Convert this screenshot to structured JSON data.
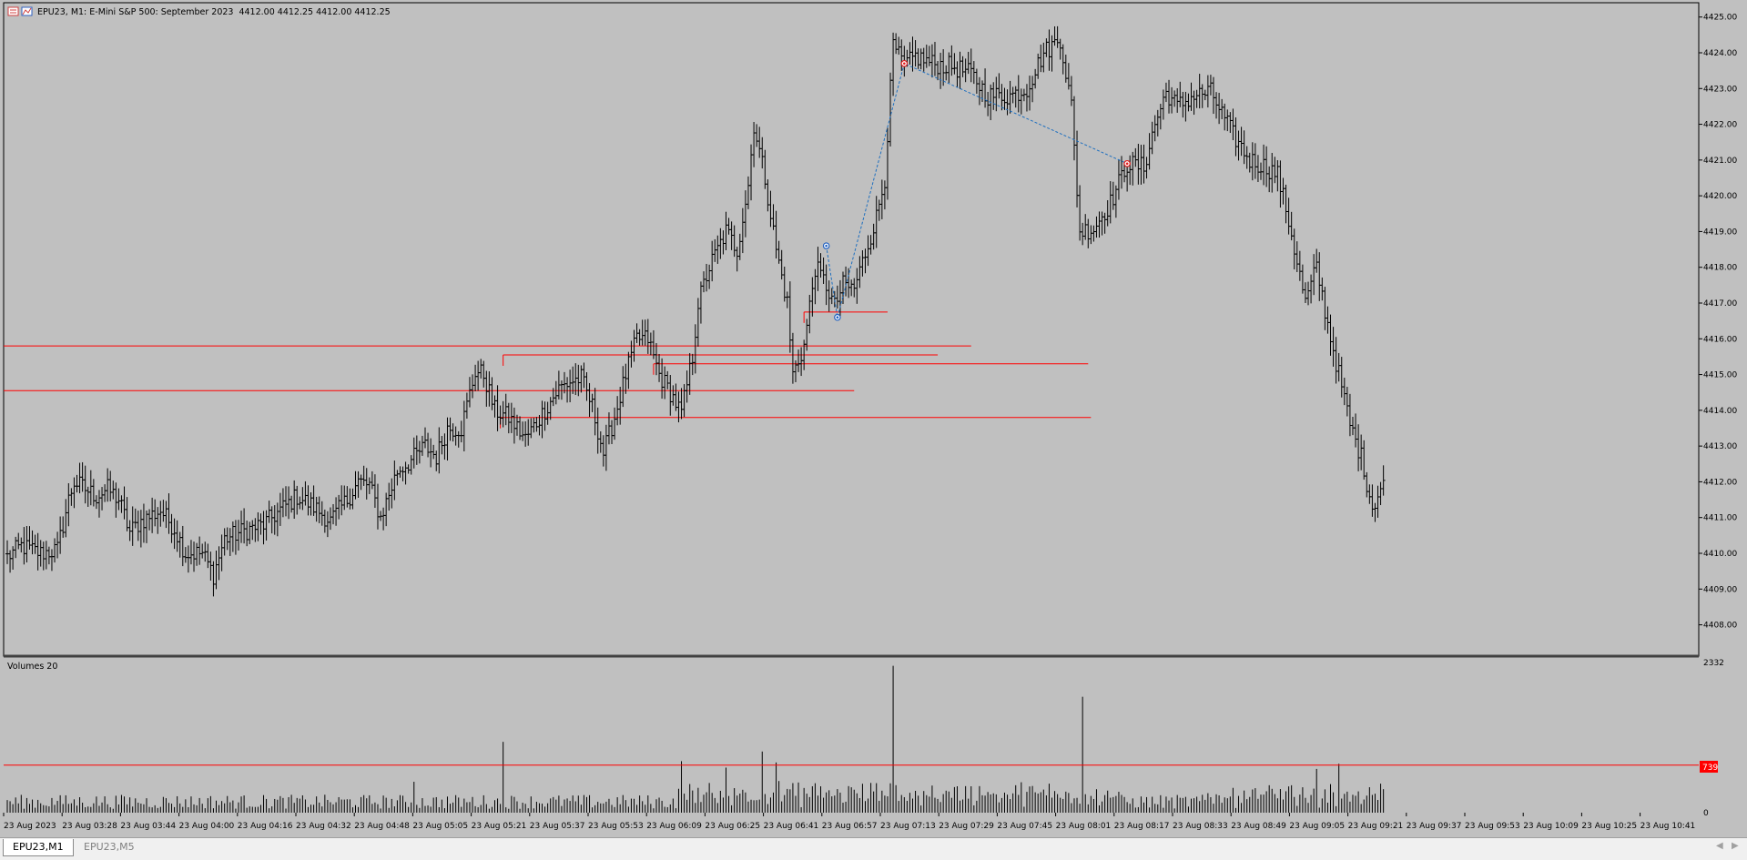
{
  "window": {
    "title_symbol": "EPU23, M1:  E-Mini S&P 500: September 2023",
    "title_ohlc": "4412.00 4412.25 4412.00 4412.25"
  },
  "volume_panel": {
    "title": "Volumes 20",
    "max_label": "2332",
    "zero_label": "0",
    "level_label": "739"
  },
  "tabs": [
    {
      "label": "EPU23,M1",
      "active": true
    },
    {
      "label": "EPU23,M5",
      "active": false
    }
  ],
  "colors": {
    "background": "#c0c0c0",
    "bars": "#000000",
    "level_lines": "#ff0000",
    "trend_line": "#1e6fbf",
    "marker_red": "#e02020",
    "marker_blue": "#2060c0"
  },
  "chart_data": {
    "type": "ohlc",
    "timeframe": "M1",
    "y_ticks": [
      "4425.00",
      "4424.00",
      "4423.00",
      "4422.00",
      "4421.00",
      "4420.00",
      "4419.00",
      "4418.00",
      "4417.00",
      "4416.00",
      "4415.00",
      "4414.00",
      "4413.00",
      "4412.00",
      "4411.00",
      "4410.00",
      "4409.00",
      "4408.00"
    ],
    "ylim": [
      4407.2,
      4425.4
    ],
    "x_ticks": [
      "23 Aug 2023",
      "23 Aug 03:28",
      "23 Aug 03:44",
      "23 Aug 04:00",
      "23 Aug 04:16",
      "23 Aug 04:32",
      "23 Aug 04:48",
      "23 Aug 05:05",
      "23 Aug 05:21",
      "23 Aug 05:37",
      "23 Aug 05:53",
      "23 Aug 06:09",
      "23 Aug 06:25",
      "23 Aug 06:41",
      "23 Aug 06:57",
      "23 Aug 07:13",
      "23 Aug 07:29",
      "23 Aug 07:45",
      "23 Aug 08:01",
      "23 Aug 08:17",
      "23 Aug 08:33",
      "23 Aug 08:49",
      "23 Aug 09:05",
      "23 Aug 09:21",
      "23 Aug 09:37",
      "23 Aug 09:53",
      "23 Aug 10:09",
      "23 Aug 10:25",
      "23 Aug 10:41"
    ],
    "close_anchors": [
      [
        0,
        4409.9
      ],
      [
        5,
        4410.2
      ],
      [
        12,
        4410.0
      ],
      [
        18,
        4410.1
      ],
      [
        22,
        4411.5
      ],
      [
        24,
        4412.0
      ],
      [
        28,
        4411.8
      ],
      [
        32,
        4411.6
      ],
      [
        36,
        4411.8
      ],
      [
        40,
        4411.5
      ],
      [
        44,
        4410.6
      ],
      [
        48,
        4410.9
      ],
      [
        55,
        4411.2
      ],
      [
        60,
        4410.7
      ],
      [
        64,
        4410.0
      ],
      [
        70,
        4410.0
      ],
      [
        74,
        4409.4
      ],
      [
        78,
        4410.4
      ],
      [
        84,
        4410.6
      ],
      [
        92,
        4410.8
      ],
      [
        98,
        4411.2
      ],
      [
        104,
        4411.6
      ],
      [
        110,
        4411.3
      ],
      [
        116,
        4410.9
      ],
      [
        122,
        4411.5
      ],
      [
        126,
        4412.0
      ],
      [
        130,
        4411.9
      ],
      [
        134,
        4411.0
      ],
      [
        140,
        4412.3
      ],
      [
        145,
        4412.6
      ],
      [
        150,
        4413.0
      ],
      [
        154,
        4412.7
      ],
      [
        158,
        4413.5
      ],
      [
        163,
        4413.5
      ],
      [
        168,
        4415.1
      ],
      [
        171,
        4415.0
      ],
      [
        175,
        4414.0
      ],
      [
        180,
        4413.8
      ],
      [
        186,
        4413.2
      ],
      [
        192,
        4413.9
      ],
      [
        198,
        4414.6
      ],
      [
        202,
        4414.8
      ],
      [
        206,
        4414.9
      ],
      [
        210,
        4414.1
      ],
      [
        214,
        4412.8
      ],
      [
        218,
        4413.8
      ],
      [
        222,
        4415.0
      ],
      [
        226,
        4416.0
      ],
      [
        230,
        4416.0
      ],
      [
        234,
        4415.0
      ],
      [
        238,
        4414.5
      ],
      [
        242,
        4413.9
      ],
      [
        246,
        4415.5
      ],
      [
        248,
        4417.0
      ],
      [
        252,
        4418.0
      ],
      [
        258,
        4419.0
      ],
      [
        262,
        4418.5
      ],
      [
        266,
        4420.3
      ],
      [
        268,
        4422.0
      ],
      [
        272,
        4420.5
      ],
      [
        276,
        4418.5
      ],
      [
        280,
        4417.0
      ],
      [
        282,
        4415.0
      ],
      [
        286,
        4415.8
      ],
      [
        290,
        4418.0
      ],
      [
        294,
        4417.5
      ],
      [
        297,
        4416.9
      ],
      [
        300,
        4417.5
      ],
      [
        304,
        4417.4
      ],
      [
        308,
        4418.4
      ],
      [
        312,
        4419.4
      ],
      [
        315,
        4420.5
      ],
      [
        318,
        4424.2
      ],
      [
        322,
        4423.6
      ],
      [
        326,
        4423.9
      ],
      [
        332,
        4423.7
      ],
      [
        340,
        4423.6
      ],
      [
        346,
        4423.4
      ],
      [
        352,
        4422.8
      ],
      [
        360,
        4422.8
      ],
      [
        366,
        4423.0
      ],
      [
        372,
        4424.0
      ],
      [
        378,
        4424.4
      ],
      [
        382,
        4422.5
      ],
      [
        385,
        4419.0
      ],
      [
        390,
        4419.1
      ],
      [
        396,
        4419.8
      ],
      [
        402,
        4420.9
      ],
      [
        408,
        4420.8
      ],
      [
        412,
        4422.0
      ],
      [
        416,
        4422.9
      ],
      [
        420,
        4422.5
      ],
      [
        426,
        4422.8
      ],
      [
        432,
        4422.9
      ],
      [
        436,
        4422.3
      ],
      [
        440,
        4421.7
      ],
      [
        446,
        4421.0
      ],
      [
        452,
        4420.8
      ],
      [
        456,
        4420.6
      ],
      [
        460,
        4419.3
      ],
      [
        466,
        4417.0
      ],
      [
        470,
        4418.0
      ],
      [
        474,
        4416.4
      ],
      [
        478,
        4415.0
      ],
      [
        482,
        4413.6
      ],
      [
        486,
        4412.7
      ],
      [
        490,
        4411.3
      ],
      [
        494,
        4412.0
      ]
    ],
    "volume_ylim": [
      0,
      2332
    ],
    "volume_level": 739,
    "volume_spikes": [
      [
        146,
        480
      ],
      [
        178,
        1100
      ],
      [
        242,
        800
      ],
      [
        258,
        700
      ],
      [
        271,
        950
      ],
      [
        276,
        780
      ],
      [
        318,
        2280
      ],
      [
        386,
        1800
      ],
      [
        470,
        680
      ],
      [
        478,
        760
      ]
    ],
    "trend_points": [
      [
        294,
        4418.6
      ],
      [
        298,
        4416.6
      ],
      [
        322,
        4423.7
      ],
      [
        402,
        4420.9
      ]
    ],
    "level_segments": [
      {
        "from": 0,
        "to": 346,
        "y": 4415.8
      },
      {
        "from": 0,
        "to": 304,
        "y": 4414.55
      },
      {
        "from": 178,
        "to": 334,
        "y": 4415.55
      },
      {
        "from": 232,
        "to": 388,
        "y": 4415.3
      },
      {
        "from": 177,
        "to": 389,
        "y": 4413.8
      },
      {
        "from": 286,
        "to": 316,
        "y": 4416.75
      }
    ]
  }
}
